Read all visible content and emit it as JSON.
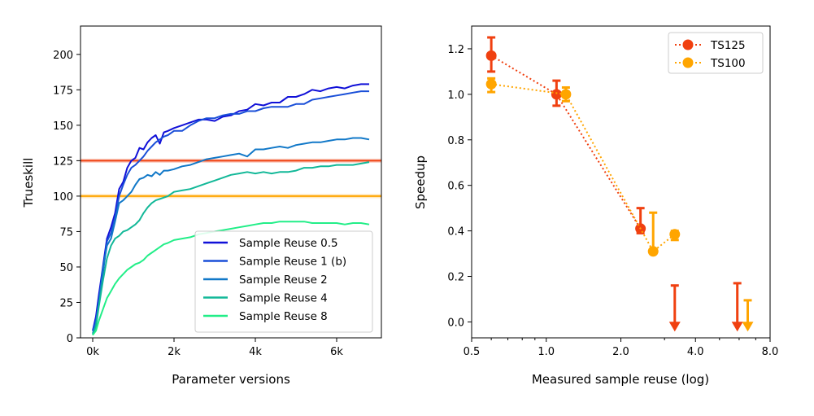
{
  "chart_data": [
    {
      "type": "line",
      "xlabel": "Parameter versions",
      "ylabel": "Trueskill",
      "xlim": [
        -300,
        7100
      ],
      "ylim": [
        0,
        220
      ],
      "xticks": [
        {
          "value": 0,
          "label": "0k"
        },
        {
          "value": 2000,
          "label": "2k"
        },
        {
          "value": 4000,
          "label": "4k"
        },
        {
          "value": 6000,
          "label": "6k"
        }
      ],
      "yticks": [
        0,
        25,
        50,
        75,
        100,
        125,
        150,
        175,
        200
      ],
      "legend_position": "lower-right",
      "reference_lines": [
        {
          "name": "TS125",
          "value": 125,
          "color": "#f04010"
        },
        {
          "name": "TS100",
          "value": 100,
          "color": "#ffa500"
        }
      ],
      "series": [
        {
          "name": "Sample Reuse 0.5",
          "color": "#1010d8",
          "x": [
            0,
            80,
            150,
            250,
            350,
            450,
            550,
            650,
            750,
            850,
            950,
            1050,
            1150,
            1250,
            1350,
            1450,
            1550,
            1650,
            1750,
            1850,
            2000,
            2200,
            2400,
            2600,
            2800,
            3000,
            3200,
            3400,
            3600,
            3800,
            4000,
            4200,
            4400,
            4600,
            4800,
            5000,
            5200,
            5400,
            5600,
            5800,
            6000,
            6200,
            6400,
            6600,
            6800
          ],
          "y": [
            5,
            15,
            30,
            50,
            70,
            78,
            88,
            105,
            110,
            120,
            125,
            127,
            134,
            133,
            138,
            141,
            143,
            137,
            145,
            146,
            148,
            150,
            152,
            154,
            154,
            153,
            156,
            157,
            160,
            161,
            165,
            164,
            166,
            166,
            170,
            170,
            172,
            175,
            174,
            176,
            177,
            176,
            178,
            179,
            179
          ]
        },
        {
          "name": "Sample Reuse 1 (b)",
          "color": "#1a4fd8",
          "x": [
            0,
            80,
            150,
            250,
            350,
            450,
            550,
            650,
            750,
            850,
            950,
            1050,
            1150,
            1250,
            1350,
            1450,
            1550,
            1650,
            1750,
            1850,
            2000,
            2200,
            2400,
            2600,
            2800,
            3000,
            3200,
            3400,
            3600,
            3800,
            4000,
            4200,
            4400,
            4600,
            4800,
            5000,
            5200,
            5400,
            5600,
            5800,
            6000,
            6200,
            6400,
            6600,
            6800
          ],
          "y": [
            5,
            12,
            25,
            45,
            68,
            74,
            85,
            100,
            108,
            115,
            120,
            122,
            125,
            128,
            132,
            135,
            138,
            140,
            142,
            143,
            146,
            146,
            150,
            153,
            155,
            155,
            157,
            158,
            158,
            160,
            160,
            162,
            163,
            163,
            163,
            165,
            165,
            168,
            169,
            170,
            171,
            172,
            173,
            174,
            174
          ]
        },
        {
          "name": "Sample Reuse 2",
          "color": "#1178c8",
          "x": [
            0,
            80,
            150,
            250,
            350,
            450,
            550,
            650,
            750,
            850,
            950,
            1050,
            1150,
            1250,
            1350,
            1450,
            1550,
            1650,
            1750,
            1850,
            2000,
            2200,
            2400,
            2600,
            2800,
            3000,
            3200,
            3400,
            3600,
            3800,
            4000,
            4200,
            4400,
            4600,
            4800,
            5000,
            5200,
            5400,
            5600,
            5800,
            6000,
            6200,
            6400,
            6600,
            6800
          ],
          "y": [
            3,
            10,
            25,
            48,
            65,
            70,
            82,
            95,
            97,
            100,
            103,
            108,
            112,
            113,
            115,
            114,
            117,
            115,
            118,
            118,
            119,
            121,
            122,
            124,
            126,
            127,
            128,
            129,
            130,
            128,
            133,
            133,
            134,
            135,
            134,
            136,
            137,
            138,
            138,
            139,
            140,
            140,
            141,
            141,
            140
          ]
        },
        {
          "name": "Sample Reuse 4",
          "color": "#12b898",
          "x": [
            0,
            80,
            150,
            250,
            350,
            450,
            550,
            650,
            750,
            850,
            950,
            1050,
            1150,
            1250,
            1350,
            1450,
            1550,
            1650,
            1750,
            1850,
            2000,
            2200,
            2400,
            2600,
            2800,
            3000,
            3200,
            3400,
            3600,
            3800,
            4000,
            4200,
            4400,
            4600,
            4800,
            5000,
            5200,
            5400,
            5600,
            5800,
            6000,
            6200,
            6400,
            6600,
            6800
          ],
          "y": [
            2,
            8,
            22,
            40,
            56,
            65,
            70,
            72,
            75,
            76,
            78,
            80,
            83,
            88,
            92,
            95,
            97,
            98,
            99,
            100,
            103,
            104,
            105,
            107,
            109,
            111,
            113,
            115,
            116,
            117,
            116,
            117,
            116,
            117,
            117,
            118,
            120,
            120,
            121,
            121,
            122,
            122,
            122,
            123,
            124
          ]
        },
        {
          "name": "Sample Reuse 8",
          "color": "#22ee88",
          "x": [
            0,
            80,
            150,
            250,
            350,
            450,
            550,
            650,
            750,
            850,
            950,
            1050,
            1150,
            1250,
            1350,
            1450,
            1550,
            1650,
            1750,
            1850,
            2000,
            2200,
            2400,
            2600,
            2800,
            3000,
            3200,
            3400,
            3600,
            3800,
            4000,
            4200,
            4400,
            4600,
            4800,
            5000,
            5200,
            5400,
            5600,
            5800,
            6000,
            6200,
            6400,
            6600,
            6800
          ],
          "y": [
            2,
            5,
            12,
            20,
            28,
            33,
            38,
            42,
            45,
            48,
            50,
            52,
            53,
            55,
            58,
            60,
            62,
            64,
            66,
            67,
            69,
            70,
            71,
            73,
            74,
            75,
            76,
            77,
            78,
            79,
            80,
            81,
            81,
            82,
            82,
            82,
            82,
            81,
            81,
            81,
            81,
            80,
            81,
            81,
            80
          ]
        }
      ]
    },
    {
      "type": "scatter",
      "xscale": "log",
      "xlabel": "Measured sample reuse (log)",
      "ylabel": "Speedup",
      "xlim": [
        0.5,
        8.0
      ],
      "ylim": [
        -0.07,
        1.3
      ],
      "xticks": [
        {
          "value": 0.5,
          "label": "0.5"
        },
        {
          "value": 1.0,
          "label": "1.0"
        },
        {
          "value": 2.0,
          "label": "2.0"
        },
        {
          "value": 4.0,
          "label": "4.0"
        },
        {
          "value": 8.0,
          "label": "8.0"
        }
      ],
      "yticks": [
        {
          "value": 0.0,
          "label": "0.0"
        },
        {
          "value": 0.2,
          "label": "0.2"
        },
        {
          "value": 0.4,
          "label": "0.4"
        },
        {
          "value": 0.6,
          "label": "0.6"
        },
        {
          "value": 0.8,
          "label": "0.8"
        },
        {
          "value": 1.0,
          "label": "1.0"
        },
        {
          "value": 1.2,
          "label": "1.2"
        }
      ],
      "legend_position": "top-right",
      "series": [
        {
          "name": "TS125",
          "color": "#f04010",
          "points": [
            {
              "x": 0.6,
              "y": 1.17,
              "err_low": 1.1,
              "err_high": 1.25
            },
            {
              "x": 1.1,
              "y": 1.0,
              "err_low": 0.95,
              "err_high": 1.06
            },
            {
              "x": 2.4,
              "y": 0.41,
              "err_low": 0.39,
              "err_high": 0.5
            }
          ],
          "upper_limits": [
            {
              "x": 3.3,
              "y_top": 0.16
            },
            {
              "x": 5.9,
              "y_top": 0.17
            }
          ]
        },
        {
          "name": "TS100",
          "color": "#ffa500",
          "points": [
            {
              "x": 0.6,
              "y": 1.045,
              "err_low": 1.01,
              "err_high": 1.07
            },
            {
              "x": 1.2,
              "y": 1.0,
              "err_low": 0.97,
              "err_high": 1.03
            },
            {
              "x": 2.7,
              "y": 0.31,
              "err_low": 0.31,
              "err_high": 0.48
            },
            {
              "x": 3.3,
              "y": 0.385,
              "err_low": 0.36,
              "err_high": 0.4
            }
          ],
          "upper_limits": [
            {
              "x": 6.5,
              "y_top": 0.095
            }
          ]
        }
      ]
    }
  ]
}
